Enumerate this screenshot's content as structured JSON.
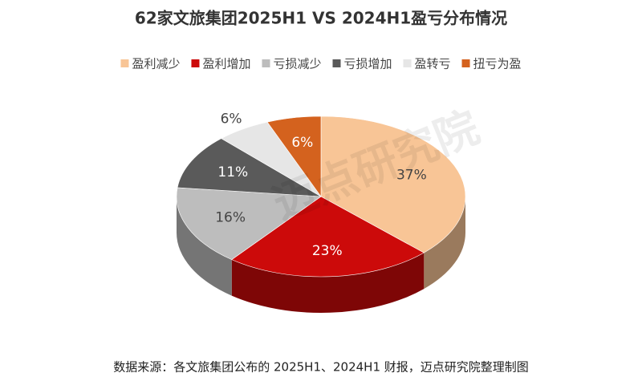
{
  "chart_data": {
    "type": "pie",
    "title": "62家文旅集团2025H1  VS  2024H1盈亏分布情况",
    "categories": [
      "盈利减少",
      "盈利增加",
      "亏损减少",
      "亏损增加",
      "盈转亏",
      "扭亏为盈"
    ],
    "values": [
      37,
      23,
      16,
      11,
      6,
      6
    ],
    "value_labels": [
      "37%",
      "23%",
      "16%",
      "11%",
      "6%",
      "6%"
    ],
    "colors": [
      "#f8c596",
      "#cc0a0a",
      "#bdbdbd",
      "#5a5a5a",
      "#e6e6e6",
      "#d4621e"
    ],
    "legend": "top",
    "watermark": "迈点研究院",
    "source": "数据来源：各文旅集团公布的 2025H1、2024H1 财报，迈点研究院整理制图"
  }
}
